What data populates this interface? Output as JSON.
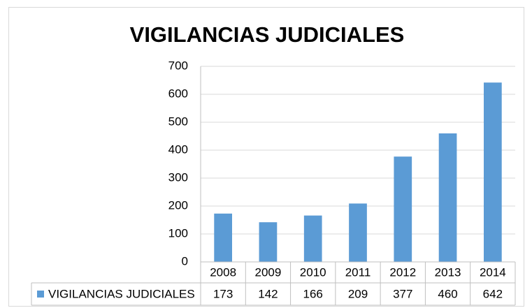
{
  "chart_data": {
    "type": "bar",
    "title": "VIGILANCIAS JUDICIALES",
    "categories": [
      "2008",
      "2009",
      "2010",
      "2011",
      "2012",
      "2013",
      "2014"
    ],
    "series": [
      {
        "name": "VIGILANCIAS JUDICIALES",
        "color": "#5b9bd5",
        "values": [
          173,
          142,
          166,
          209,
          377,
          460,
          642
        ]
      }
    ],
    "ylim": [
      0,
      700
    ],
    "yticks": [
      0,
      100,
      200,
      300,
      400,
      500,
      600,
      700
    ],
    "grid": true,
    "data_table": true
  }
}
